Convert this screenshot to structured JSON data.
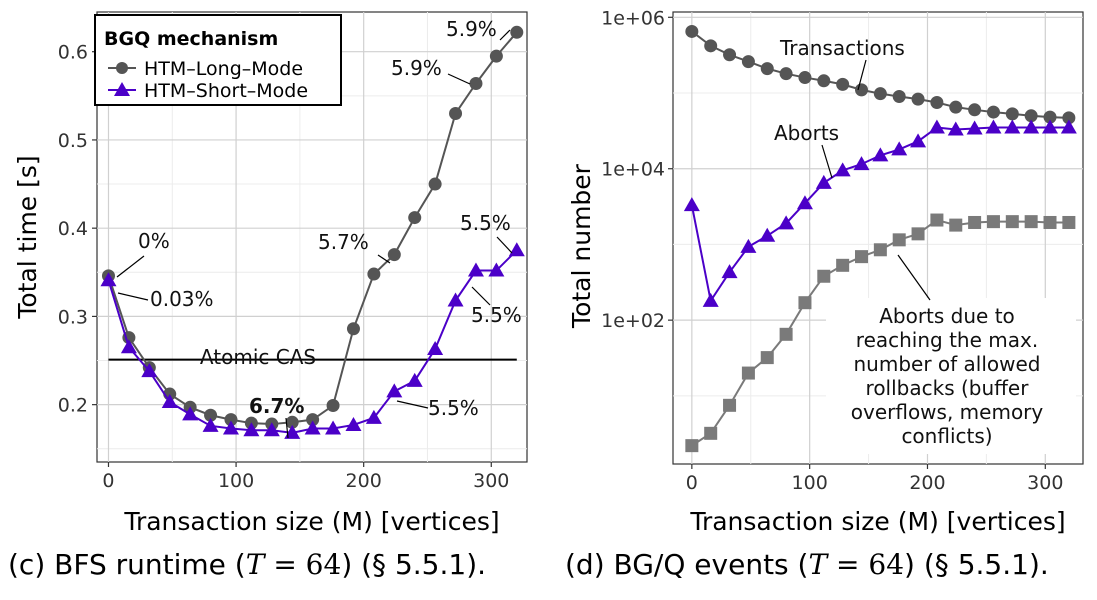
{
  "chart_data": [
    {
      "type": "line",
      "panel": "c",
      "xlabel": "Transaction size (M) [vertices]",
      "ylabel": "Total time [s]",
      "xlim": [
        -9,
        328
      ],
      "ylim": [
        0.135,
        0.645
      ],
      "xticks": [
        0,
        100,
        200,
        300
      ],
      "yticks": [
        0.2,
        0.3,
        0.4,
        0.5,
        0.6
      ],
      "grid": true,
      "x": [
        0,
        16,
        32,
        48,
        64,
        80,
        96,
        112,
        128,
        144,
        160,
        176,
        192,
        208,
        224,
        240,
        256,
        272,
        288,
        304,
        320
      ],
      "series": [
        {
          "name": "HTM–Long–Mode",
          "color": "#555555",
          "marker": "circle",
          "values": [
            0.346,
            0.276,
            0.242,
            0.212,
            0.197,
            0.188,
            0.183,
            0.179,
            0.178,
            0.18,
            0.183,
            0.199,
            0.286,
            0.348,
            0.37,
            0.412,
            0.45,
            0.53,
            0.564,
            0.595,
            0.622
          ]
        },
        {
          "name": "HTM–Short–Mode",
          "color": "#4b00c8",
          "marker": "triangle",
          "values": [
            0.341,
            0.265,
            0.238,
            0.203,
            0.189,
            0.176,
            0.173,
            0.171,
            0.171,
            0.168,
            0.173,
            0.173,
            0.177,
            0.185,
            0.215,
            0.227,
            0.263,
            0.318,
            0.352,
            0.352,
            0.375
          ]
        }
      ],
      "reference_line": {
        "label": "Atomic CAS",
        "y": 0.251,
        "x_from": 0,
        "x_to": 320
      },
      "legend": {
        "title": "BGQ mechanism",
        "placement": "top-left",
        "entries": [
          "HTM–Long–Mode",
          "HTM–Short–Mode"
        ]
      },
      "annotations": [
        "0%",
        "0.03%",
        "6.7%",
        "5.7%",
        "5.9%",
        "5.9%",
        "5.5%",
        "5.5%",
        "5.5%"
      ]
    },
    {
      "type": "line",
      "panel": "d",
      "xlabel": "Transaction size (M) [vertices]",
      "ylabel": "Total number",
      "yscale": "log",
      "xlim": [
        -16,
        332
      ],
      "ylog_range": [
        0.1,
        6.07
      ],
      "xticks": [
        0,
        100,
        200,
        300
      ],
      "yticks": [
        "1e+02",
        "1e+04",
        "1e+06"
      ],
      "grid": true,
      "x": [
        0,
        16,
        32,
        48,
        64,
        80,
        96,
        112,
        128,
        144,
        160,
        176,
        192,
        208,
        224,
        240,
        256,
        272,
        288,
        304,
        320
      ],
      "series": [
        {
          "label": "Transactions",
          "color": "#555555",
          "marker": "circle",
          "values": [
            650000,
            420000,
            320000,
            260000,
            210000,
            180000,
            160000,
            145000,
            130000,
            110000,
            98000,
            90000,
            83000,
            75000,
            65000,
            60000,
            56000,
            53000,
            50000,
            48000,
            47000
          ]
        },
        {
          "label": "Aborts",
          "color": "#4b00c8",
          "marker": "triangle",
          "values": [
            3300,
            180,
            430,
            930,
            1300,
            1900,
            3500,
            6500,
            9500,
            11500,
            15000,
            18000,
            23000,
            35000,
            33000,
            34000,
            35000,
            35000,
            35000,
            35000,
            35000
          ]
        },
        {
          "label": "Aborts due to reaching the max. number of allowed rollbacks (buffer overflows, memory conflicts)",
          "color": "#7a7a7a",
          "marker": "square",
          "values": [
            2.2,
            3.2,
            7.5,
            20,
            32,
            65,
            170,
            380,
            530,
            690,
            850,
            1150,
            1380,
            2100,
            1800,
            1950,
            2000,
            2000,
            2000,
            1950,
            1950
          ]
        }
      ],
      "annotations": {
        "transactions": "Transactions",
        "aborts": "Aborts",
        "rollback_lines": [
          "Aborts due to",
          "reaching the max.",
          "number of allowed",
          "rollbacks (buffer",
          "overflows, memory",
          "conflicts)"
        ]
      }
    }
  ],
  "captions": {
    "c": {
      "pre": "(c) BFS runtime (",
      "math": "T",
      "eq": " = 64",
      "post": ") (§ 5.5.1)."
    },
    "d": {
      "pre": "(d) BG/Q events (",
      "math": "T",
      "eq": " = 64",
      "post": ") (§ 5.5.1)."
    }
  }
}
